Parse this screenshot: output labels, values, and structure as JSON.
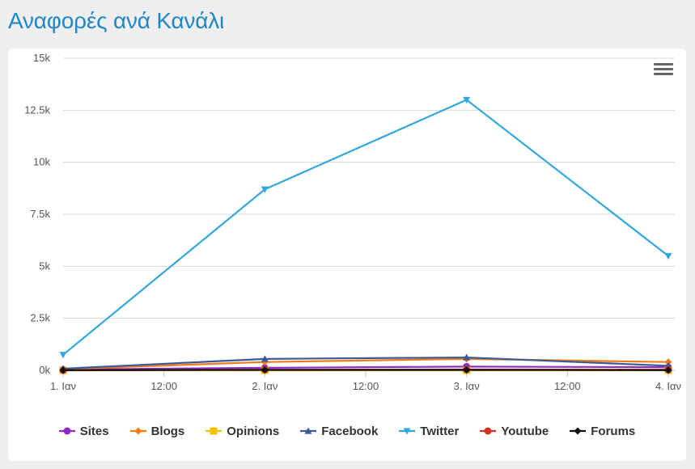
{
  "page": {
    "title": "Αναφορές ανά Κανάλι"
  },
  "menu": {
    "icon": "hamburger-menu-icon"
  },
  "chart_data": {
    "type": "line",
    "title": "",
    "xlabel": "",
    "ylabel": "",
    "x_ticks": [
      "1. Ιαν",
      "12:00",
      "2. Ιαν",
      "12:00",
      "3. Ιαν",
      "12:00",
      "4. Ιαν"
    ],
    "y_ticks": [
      "0k",
      "2.5k",
      "5k",
      "7.5k",
      "10k",
      "12.5k",
      "15k"
    ],
    "ylim": [
      0,
      15000
    ],
    "grid": true,
    "legend_position": "bottom",
    "categories": [
      "1. Ιαν",
      "2. Ιαν",
      "3. Ιαν",
      "4. Ιαν"
    ],
    "series": [
      {
        "name": "Sites",
        "color": "#8e2bc0",
        "marker": "circle",
        "values": [
          40,
          120,
          180,
          150
        ]
      },
      {
        "name": "Blogs",
        "color": "#f07c19",
        "marker": "diamond",
        "values": [
          60,
          400,
          550,
          400
        ]
      },
      {
        "name": "Opinions",
        "color": "#f5c400",
        "marker": "square",
        "values": [
          0,
          0,
          0,
          0
        ]
      },
      {
        "name": "Facebook",
        "color": "#3c5a99",
        "marker": "triangle-up",
        "values": [
          80,
          550,
          620,
          220
        ]
      },
      {
        "name": "Twitter",
        "color": "#33a7dd",
        "marker": "triangle-down",
        "values": [
          750,
          8700,
          13000,
          5500
        ]
      },
      {
        "name": "Youtube",
        "color": "#cc3322",
        "marker": "circle",
        "values": [
          0,
          30,
          40,
          30
        ]
      },
      {
        "name": "Forums",
        "color": "#111111",
        "marker": "diamond",
        "values": [
          10,
          20,
          20,
          10
        ]
      }
    ]
  }
}
